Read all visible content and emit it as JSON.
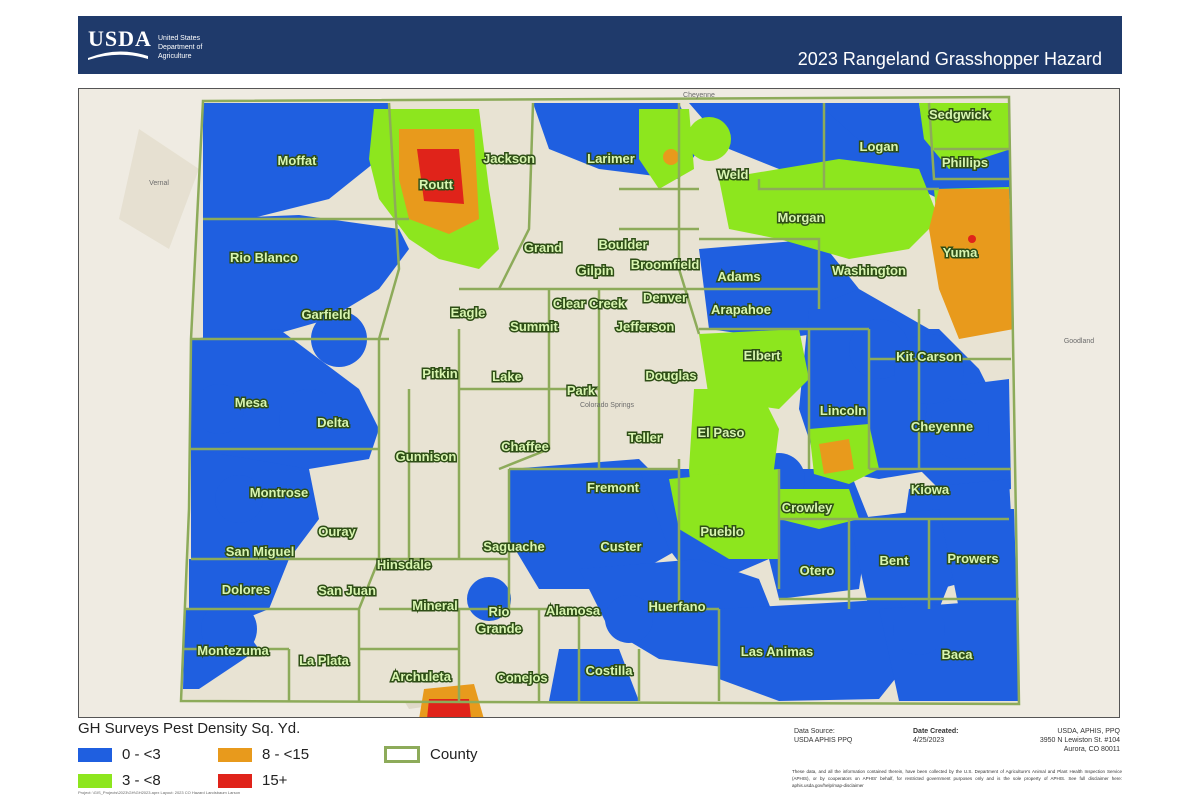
{
  "header": {
    "logo_text": "USDA",
    "agency_line1": "United States",
    "agency_line2": "Department of",
    "agency_line3": "Agriculture",
    "title": "2023 Rangeland Grasshopper Hazard"
  },
  "colors": {
    "header_bg": "#1f3a6b",
    "low": "#1f5fe0",
    "moderate": "#8de61e",
    "high": "#e89a1c",
    "severe": "#e0231a",
    "county_border": "#8dab5a",
    "basemap": "#efebe2"
  },
  "map": {
    "base_labels": [
      "Cheyenne",
      "Goodland",
      "Vernal",
      "Colorado Springs"
    ],
    "counties": [
      {
        "name": "Moffat",
        "class": "0 - <3"
      },
      {
        "name": "Routt",
        "class": "15+"
      },
      {
        "name": "Jackson",
        "class": "3 - <8"
      },
      {
        "name": "Larimer",
        "class": "3 - <8"
      },
      {
        "name": "Weld",
        "class": "3 - <8"
      },
      {
        "name": "Logan",
        "class": "0 - <3"
      },
      {
        "name": "Sedgwick",
        "class": "3 - <8"
      },
      {
        "name": "Phillips",
        "class": "0 - <3"
      },
      {
        "name": "Morgan",
        "class": "3 - <8"
      },
      {
        "name": "Yuma",
        "class": "8 - <15"
      },
      {
        "name": "Rio Blanco",
        "class": "0 - <3"
      },
      {
        "name": "Grand",
        "class": ""
      },
      {
        "name": "Boulder",
        "class": ""
      },
      {
        "name": "Gilpin",
        "class": ""
      },
      {
        "name": "Broomfield",
        "class": ""
      },
      {
        "name": "Adams",
        "class": "0 - <3"
      },
      {
        "name": "Washington",
        "class": "0 - <3"
      },
      {
        "name": "Garfield",
        "class": "0 - <3"
      },
      {
        "name": "Eagle",
        "class": ""
      },
      {
        "name": "Clear Creek",
        "class": ""
      },
      {
        "name": "Denver",
        "class": ""
      },
      {
        "name": "Arapahoe",
        "class": "0 - <3"
      },
      {
        "name": "Summit",
        "class": ""
      },
      {
        "name": "Jefferson",
        "class": ""
      },
      {
        "name": "Elbert",
        "class": "3 - <8"
      },
      {
        "name": "Kit Carson",
        "class": "0 - <3"
      },
      {
        "name": "Pitkin",
        "class": ""
      },
      {
        "name": "Lake",
        "class": ""
      },
      {
        "name": "Douglas",
        "class": ""
      },
      {
        "name": "Mesa",
        "class": "0 - <3"
      },
      {
        "name": "Park",
        "class": ""
      },
      {
        "name": "Delta",
        "class": "0 - <3"
      },
      {
        "name": "Lincoln",
        "class": "0 - <3"
      },
      {
        "name": "Cheyenne",
        "class": "0 - <3"
      },
      {
        "name": "Teller",
        "class": ""
      },
      {
        "name": "El Paso",
        "class": "3 - <8"
      },
      {
        "name": "Chaffee",
        "class": ""
      },
      {
        "name": "Gunnison",
        "class": ""
      },
      {
        "name": "Montrose",
        "class": "0 - <3"
      },
      {
        "name": "Fremont",
        "class": "0 - <3"
      },
      {
        "name": "Kiowa",
        "class": "0 - <3"
      },
      {
        "name": "Crowley",
        "class": "3 - <8"
      },
      {
        "name": "Ouray",
        "class": ""
      },
      {
        "name": "Pueblo",
        "class": "3 - <8"
      },
      {
        "name": "San Miguel",
        "class": "0 - <3"
      },
      {
        "name": "Saguache",
        "class": "0 - <3"
      },
      {
        "name": "Custer",
        "class": "0 - <3"
      },
      {
        "name": "Hinsdale",
        "class": ""
      },
      {
        "name": "Bent",
        "class": "0 - <3"
      },
      {
        "name": "Prowers",
        "class": "0 - <3"
      },
      {
        "name": "Otero",
        "class": "0 - <3"
      },
      {
        "name": "Dolores",
        "class": "0 - <3"
      },
      {
        "name": "San Juan",
        "class": ""
      },
      {
        "name": "Mineral",
        "class": ""
      },
      {
        "name": "Rio",
        "class": ""
      },
      {
        "name": "Grande",
        "class": ""
      },
      {
        "name": "Alamosa",
        "class": ""
      },
      {
        "name": "Huerfano",
        "class": "0 - <3"
      },
      {
        "name": "Montezuma",
        "class": "0 - <3"
      },
      {
        "name": "La Plata",
        "class": ""
      },
      {
        "name": "Costilla",
        "class": "0 - <3"
      },
      {
        "name": "Las Animas",
        "class": "0 - <3"
      },
      {
        "name": "Baca",
        "class": "0 - <3"
      },
      {
        "name": "Archuleta",
        "class": "8 - <15"
      },
      {
        "name": "Conejos",
        "class": "0 - <3"
      }
    ]
  },
  "legend": {
    "title": "GH Surveys Pest Density Sq. Yd.",
    "items": [
      {
        "label": "0 - <3",
        "color": "#1f5fe0"
      },
      {
        "label": "8 - <15",
        "color": "#e89a1c"
      },
      {
        "label": "3 - <8",
        "color": "#8de61e"
      },
      {
        "label": "15+",
        "color": "#e0231a"
      }
    ],
    "county_label": "County"
  },
  "footer": {
    "credit": "Project: \\GIS_Projects\\2023\\GH\\GH2023.aprx  Layout: 2023 CO Hazard  Landsbaum  Larson",
    "data_source_label": "Data Source:",
    "data_source_value": "USDA APHIS PPQ",
    "date_label": "Date Created:",
    "date_value": "4/25/2023",
    "agency_line1": "USDA, APHIS, PPQ",
    "agency_line2": "3950 N Lewiston St. #104",
    "agency_line3": "Aurora, CO 80011",
    "disclaimer": "These data, and all the information contained therein, have been collected by the U.S. Department of Agriculture's Animal and Plant Health Inspection Service (APHIS), or by cooperators on APHIS' behalf, for restricted government purposes only and is the sole property of APHIS. See full disclaimer here: aphis.usda.gov/help/map-disclaimer"
  }
}
